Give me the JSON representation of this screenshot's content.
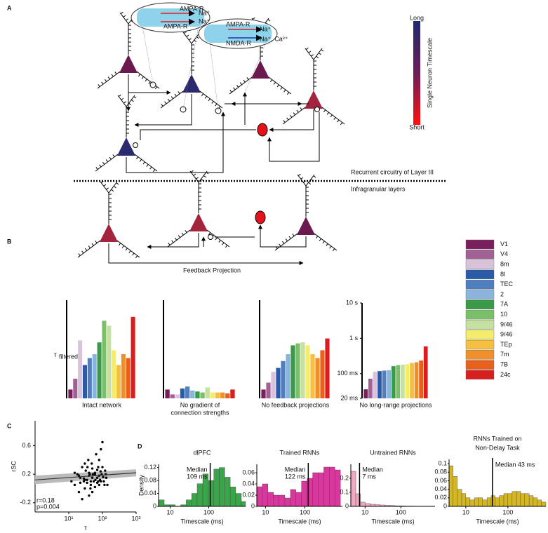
{
  "panel_labels": [
    "A",
    "B",
    "C",
    "D"
  ],
  "diagram": {
    "colorbar": {
      "title": "Single Neuron Timescale",
      "top": "Long",
      "bottom": "Short"
    },
    "layer3_label": "Recurrent circuitry of Layer III",
    "infragranular_label": "Infragranular layers",
    "feedback_label": "Feedback Projection",
    "insets": [
      [
        "AMPA-R",
        "Na⁺",
        "AMPA-R",
        "Na⁺"
      ],
      [
        "AMPA-R",
        "Na⁺",
        "NMDA-R",
        "Na⁺, Ca²⁺"
      ]
    ]
  },
  "areas": {
    "names": [
      "V1",
      "V4",
      "8m",
      "8l",
      "TEC",
      "2",
      "7A",
      "10",
      "9/46",
      "9/46",
      "TEp",
      "7m",
      "7B",
      "24c"
    ],
    "colors": [
      "#7a1f5c",
      "#a06295",
      "#d9c2da",
      "#2a5aa8",
      "#4f7fbf",
      "#8ab4dc",
      "#3a9a4a",
      "#7bbf6a",
      "#c6e0a0",
      "#f4ec6a",
      "#f5c040",
      "#f0902a",
      "#e8601c",
      "#d81e1e"
    ]
  },
  "chart_data": [
    {
      "type": "bar",
      "xlabel": [
        "Intact network"
      ],
      "ylabel": "τ",
      "ylabel_subscript": "filtered",
      "values": [
        9,
        20,
        59,
        34,
        41,
        45,
        57,
        79,
        74,
        49,
        34,
        45,
        41,
        83
      ],
      "ylim": [
        0,
        100
      ]
    },
    {
      "type": "bar",
      "xlabel": [
        "No gradient of",
        "connection strengths"
      ],
      "values": [
        9,
        4,
        4,
        10,
        12,
        8,
        7,
        6,
        11,
        6,
        6,
        6,
        5,
        9
      ],
      "ylim": [
        0,
        100
      ]
    },
    {
      "type": "bar",
      "xlabel": [
        "No feedback projections"
      ],
      "values": [
        9,
        16,
        27,
        31,
        38,
        45,
        54,
        56,
        57,
        54,
        45,
        41,
        49,
        61
      ],
      "ylim": [
        0,
        100
      ]
    },
    {
      "type": "bar",
      "xlabel": [
        "No long-range projections"
      ],
      "log_scale": true,
      "values": [
        36,
        72,
        113,
        118,
        122,
        125,
        163,
        175,
        180,
        185,
        200,
        210,
        235,
        590
      ],
      "ylim": [
        20,
        10000
      ],
      "yticks": [
        {
          "value": 20,
          "label": "20 ms"
        },
        {
          "value": 100,
          "label": "100 ms"
        },
        {
          "value": 1000,
          "label": "1 s"
        },
        {
          "value": 10000,
          "label": "10 s"
        }
      ]
    },
    {
      "type": "scatter",
      "xlabel": "τ",
      "ylabel": "rSC",
      "x_log": true,
      "color": "#000000",
      "x": [
        12,
        15,
        18,
        20,
        22,
        25,
        28,
        30,
        32,
        35,
        38,
        40,
        42,
        45,
        48,
        50,
        55,
        60,
        65,
        70,
        75,
        80,
        85,
        90,
        95,
        100,
        110,
        120,
        130,
        140,
        20,
        25,
        30,
        35,
        40,
        45,
        50,
        60,
        70,
        80,
        90,
        100,
        30,
        40,
        50,
        60,
        70,
        80,
        15,
        22,
        28,
        36,
        44,
        52,
        62,
        75,
        88,
        105,
        115,
        125
      ],
      "values": [
        0.1,
        0.05,
        0.2,
        -0.05,
        0.15,
        0.3,
        0.1,
        0.0,
        0.25,
        0.12,
        0.4,
        -0.1,
        0.2,
        0.05,
        0.35,
        0.15,
        0.1,
        0.22,
        0.48,
        0.08,
        0.3,
        0.18,
        0.12,
        0.55,
        0.2,
        0.65,
        0.1,
        0.25,
        0.15,
        0.05,
        0.18,
        -0.15,
        0.35,
        0.08,
        0.22,
        0.1,
        0.28,
        0.02,
        0.15,
        0.4,
        0.1,
        0.3,
        0.12,
        0.18,
        -0.05,
        0.2,
        0.26,
        0.05,
        0.22,
        0.08,
        0.14,
        0.3,
        0.0,
        0.2,
        0.12,
        0.1,
        0.24,
        0.16,
        0.05,
        0.2
      ],
      "xlim": [
        1,
        1000
      ],
      "ylim": [
        -0.33,
        0.95
      ],
      "xticks": [
        {
          "value": 10,
          "label": "10¹"
        },
        {
          "value": 100,
          "label": "10²"
        },
        {
          "value": 1000,
          "label": "10³"
        }
      ],
      "yticks": [
        0.6,
        0.2,
        -0.2
      ],
      "fit": {
        "x": [
          1,
          1000
        ],
        "y": [
          0.12,
          0.22
        ],
        "lower": [
          0.06,
          0.17
        ],
        "upper": [
          0.18,
          0.27
        ]
      },
      "annotations": [
        "r=0.18",
        "p=0.004"
      ]
    },
    {
      "type": "histogram",
      "title": [
        "dlPFC"
      ],
      "color": "#3aa64a",
      "x_log": true,
      "xlabel": "Timescale (ms)",
      "ylabel": "Density",
      "bins": [
        5,
        7,
        9.7,
        13.5,
        18.7,
        26,
        36,
        50,
        70,
        97,
        135,
        187,
        260,
        360,
        500,
        700,
        900
      ],
      "values": [
        0.02,
        0.005,
        0.005,
        0.0,
        0.005,
        0.02,
        0.04,
        0.07,
        0.1,
        0.08,
        0.115,
        0.12,
        0.09,
        0.06,
        0.04,
        0.015
      ],
      "xlim": [
        5,
        900
      ],
      "ylim": [
        0,
        0.13
      ],
      "xticks": [
        10,
        100
      ],
      "yticks": [
        0,
        0.04,
        0.08,
        0.12
      ],
      "median": 109,
      "median_label": [
        "Median",
        "109 ms"
      ]
    },
    {
      "type": "histogram",
      "title": [
        "Trained RNNs"
      ],
      "color": "#d6399b",
      "x_log": true,
      "xlabel": "Timescale (ms)",
      "bins": [
        6,
        8.3,
        11.5,
        16,
        22,
        31,
        43,
        59,
        82,
        114,
        158,
        219,
        303,
        420,
        580,
        800
      ],
      "values": [
        0.035,
        0.04,
        0.025,
        0.02,
        0.02,
        0.015,
        0.03,
        0.025,
        0.045,
        0.05,
        0.06,
        0.06,
        0.07,
        0.07,
        0.065
      ],
      "xlim": [
        6,
        900
      ],
      "ylim": [
        0,
        0.075
      ],
      "xticks": [
        10,
        100
      ],
      "yticks": [
        0,
        0.02,
        0.04,
        0.06
      ],
      "median": 122,
      "median_label": [
        "Median",
        "122 ms"
      ]
    },
    {
      "type": "histogram",
      "title": [
        "Untrained RNNs"
      ],
      "color": "#f2a7c3",
      "x_log": true,
      "xlabel": "Timescale (ms)",
      "bins": [
        4,
        5.5,
        7.5,
        10,
        14,
        19,
        26,
        36,
        50,
        68,
        93,
        128,
        175,
        240,
        330,
        450,
        620,
        850
      ],
      "values": [
        0.25,
        0.09,
        0.03,
        0.02,
        0.015,
        0.012,
        0.01,
        0.008,
        0.006,
        0.004,
        0.003,
        0.002,
        0.002,
        0.001,
        0.001,
        0.001,
        0.001
      ],
      "xlim": [
        4,
        900
      ],
      "ylim": [
        0,
        0.3
      ],
      "xticks": [
        10,
        100
      ],
      "yticks": [
        0,
        0.1,
        0.2
      ],
      "median": 7,
      "median_label": [
        "Median",
        "7 ms"
      ]
    },
    {
      "type": "histogram",
      "title": [
        "RNNs Trained on",
        "Non-Delay Task"
      ],
      "color": "#d4b726",
      "x_log": true,
      "xlabel": "Timescale (ms)",
      "bins": [
        4,
        5,
        6.3,
        8,
        10,
        12.6,
        16,
        20,
        25,
        32,
        40,
        50,
        63,
        80,
        100,
        126,
        160,
        200,
        250,
        320,
        400,
        500,
        630,
        800
      ],
      "values": [
        0.095,
        0.07,
        0.04,
        0.03,
        0.02,
        0.015,
        0.02,
        0.02,
        0.015,
        0.02,
        0.025,
        0.02,
        0.025,
        0.03,
        0.03,
        0.035,
        0.035,
        0.03,
        0.03,
        0.025,
        0.02,
        0.015,
        0.01
      ],
      "xlim": [
        4,
        800
      ],
      "ylim": [
        0,
        0.11
      ],
      "xticks": [
        10,
        100
      ],
      "yticks": [
        0,
        0.02,
        0.04,
        0.06,
        0.08,
        0.1
      ],
      "median": 43,
      "median_label": [
        "Median 43 ms"
      ]
    }
  ]
}
